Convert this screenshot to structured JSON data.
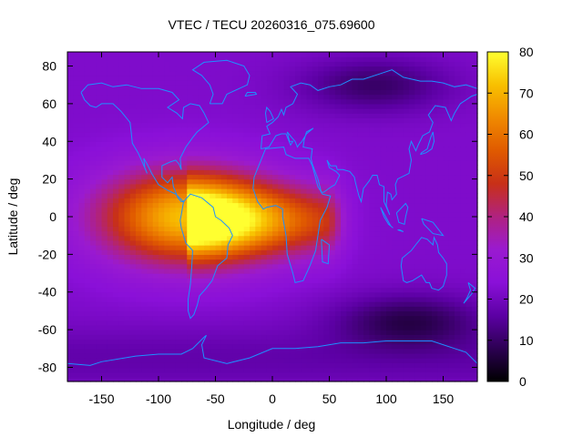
{
  "chart_data": {
    "type": "heatmap",
    "title": "VTEC / TECU 20260316_075.69600",
    "xlabel": "Longitude / deg",
    "ylabel": "Latitude / deg",
    "xlim": [
      -180,
      180
    ],
    "ylim": [
      -87.5,
      87.5
    ],
    "x_ticks": [
      -150,
      -100,
      -50,
      0,
      50,
      100,
      150
    ],
    "y_ticks": [
      -80,
      -60,
      -40,
      -20,
      0,
      20,
      40,
      60,
      80
    ],
    "colorbar": {
      "range": [
        0,
        80
      ],
      "ticks": [
        0,
        10,
        20,
        30,
        40,
        50,
        60,
        70,
        80
      ],
      "palette": [
        "#000000",
        "#2c0052",
        "#5c00a4",
        "#8a10d8",
        "#9a1ad0",
        "#b02280",
        "#c83018",
        "#e05a00",
        "#f08a00",
        "#f8c000",
        "#ffff30"
      ]
    },
    "field_model": {
      "background_tec": 22,
      "peak": {
        "center_lon": -75,
        "center_lat": 0,
        "amplitude_tec": 50,
        "sigma_lon_deg": 55,
        "sigma_lat_deg": 18
      },
      "dayside_extension": {
        "lon_from": -75,
        "lon_to": 45,
        "center_lat": -2,
        "amplitude_tec": 32,
        "sigma_lat_deg": 13
      },
      "low_regions": [
        {
          "center_lon": 90,
          "center_lat": 70,
          "depth_tec": 12
        },
        {
          "center_lon": 120,
          "center_lat": -55,
          "depth_tec": 14
        }
      ]
    },
    "continent_outlines": "coastlines drawn in light blue (#1e90ff)"
  },
  "colors": {
    "coastline": "#1e90ff",
    "frame": "#000000"
  }
}
